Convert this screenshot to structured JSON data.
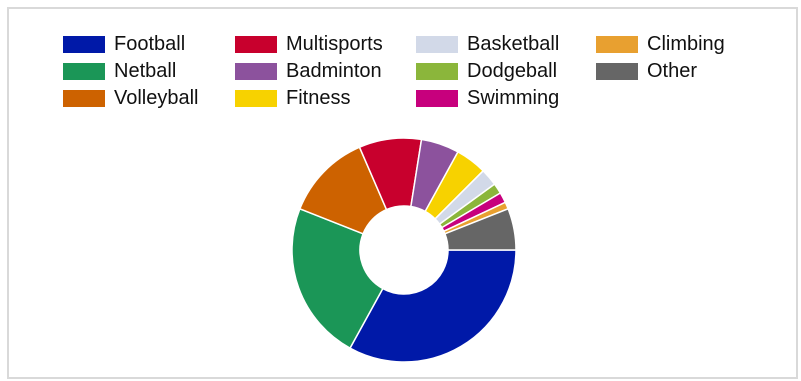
{
  "chart_data": {
    "type": "donut",
    "legend_placement": "top",
    "series": [
      {
        "name": "Football",
        "value": 33.0,
        "color": "#0019a8"
      },
      {
        "name": "Netball",
        "value": 23.0,
        "color": "#1b9657"
      },
      {
        "name": "Volleyball",
        "value": 12.5,
        "color": "#cd6200"
      },
      {
        "name": "Multisports",
        "value": 9.0,
        "color": "#c8002d"
      },
      {
        "name": "Badminton",
        "value": 5.5,
        "color": "#8c529d"
      },
      {
        "name": "Fitness",
        "value": 4.5,
        "color": "#f7d200"
      },
      {
        "name": "Basketball",
        "value": 2.5,
        "color": "#d2d9e8"
      },
      {
        "name": "Dodgeball",
        "value": 1.5,
        "color": "#8bb63b"
      },
      {
        "name": "Swimming",
        "value": 1.5,
        "color": "#c7007d"
      },
      {
        "name": "Climbing",
        "value": 1.0,
        "color": "#e8a030"
      },
      {
        "name": "Other",
        "value": 6.0,
        "color": "#666666"
      }
    ]
  }
}
